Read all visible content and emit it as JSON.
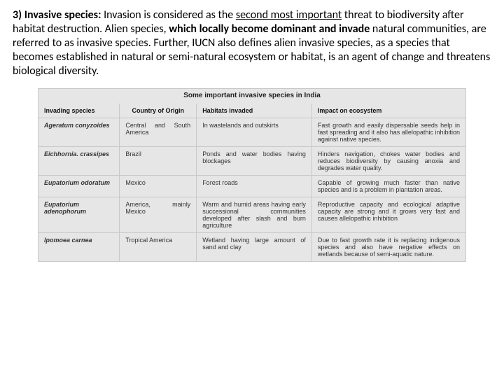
{
  "intro": {
    "lead": "3) Invasive species:",
    "p1a": " Invasion is considered as the ",
    "u1": "second most important",
    "p1b": " threat to biodiversity after habitat destruction. Alien species, ",
    "bold1": "which locally become dominant and invade",
    "p1c": " natural communities, are referred to as invasive species. Further, IUCN also defines alien invasive species, as a species that becomes established in natural or semi-natural ecosystem or habitat, is an agent of change and threatens biological diversity."
  },
  "table": {
    "caption": "Some important invasive species in India",
    "headers": [
      "Invading species",
      "Country of Origin",
      "Habitats invaded",
      "Impact on ecosystem"
    ],
    "rows": [
      {
        "species": "Ageratum conyzoides",
        "origin": "Central and South America",
        "habitat": "In wastelands and outskirts",
        "impact": "Fast growth and easily dispersable seeds help in fast spreading and it also has allelopathic inhibition against native species."
      },
      {
        "species": "Eichhornia. crassipes",
        "origin": "Brazil",
        "habitat": "Ponds and water bodies having blockages",
        "impact": "Hinders navigation, chokes water bodies and reduces biodiversity by causing anoxia and degrades water quality."
      },
      {
        "species": "Eupatorium odoratum",
        "origin": "Mexico",
        "habitat": "Forest roads",
        "impact": "Capable of growing much faster than native species and is a problem in plantation areas."
      },
      {
        "species": "Eupatorium adenophorum",
        "origin": "America, mainly Mexico",
        "habitat": "Warm and humid areas having early successional communities developed after slash and burn agriculture",
        "impact": "Reproductive capacity and ecological adaptive capacity are strong and it grows very fast and causes allelopathic inhibition"
      },
      {
        "species": "Ipomoea carnea",
        "origin": "Tropical America",
        "habitat": "Wetland having large amount of sand and clay",
        "impact": "Due to fast growth rate it is replacing indigenous species and also have negative effects on wetlands because of semi-aquatic nature."
      }
    ]
  }
}
